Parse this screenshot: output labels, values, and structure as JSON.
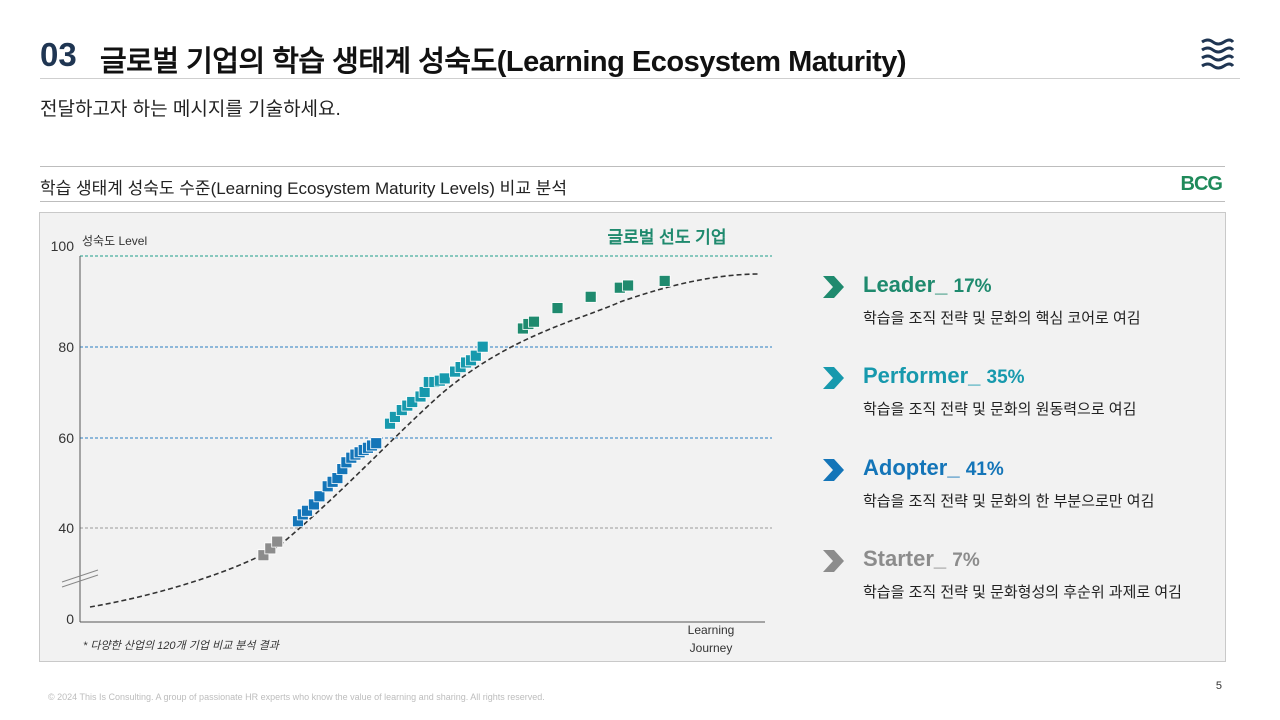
{
  "header": {
    "section_number": "03",
    "title": "글로벌 기업의 학습 생태계 성숙도(Learning Ecosystem Maturity)",
    "message": "전달하고자 하는 메시지를 기술하세요."
  },
  "section": {
    "title": "학습 생태계 성숙도 수준(Learning Ecosystem Maturity Levels) 비교 분석",
    "brand": "BCG"
  },
  "chart_data": {
    "type": "scatter",
    "title": "학습 생태계 성숙도 수준(Learning Ecosystem Maturity Levels) 비교 분석",
    "ylabel": "성숙도 Level",
    "xlabel": "Learning Journey",
    "ytick_labels": [
      "100",
      "80",
      "60",
      "40",
      "0"
    ],
    "ylim": [
      0,
      100
    ],
    "y_axis_break": true,
    "annotation_top": "글로벌 선도 기업",
    "note": "* 다양한 산업의 120개 기업 비교 분석 결과",
    "trend": "dashed S-curve",
    "series": [
      {
        "name": "Starter",
        "color": "#8c8c8c",
        "x": [
          0.265,
          0.275,
          0.285
        ],
        "y": [
          34.0,
          35.5,
          37.0
        ]
      },
      {
        "name": "Adopter",
        "color": "#1475b8",
        "x": [
          0.315,
          0.322,
          0.328,
          0.338,
          0.346,
          0.358,
          0.365,
          0.372,
          0.379,
          0.385,
          0.392,
          0.398,
          0.404,
          0.41,
          0.416,
          0.422,
          0.428
        ],
        "y": [
          41.5,
          43.0,
          43.8,
          45.2,
          47.0,
          49.2,
          50.2,
          51.0,
          53.0,
          54.5,
          55.5,
          56.2,
          56.7,
          57.2,
          57.7,
          58.2,
          58.7
        ]
      },
      {
        "name": "Performer",
        "color": "#1799ad",
        "x": [
          0.448,
          0.455,
          0.465,
          0.473,
          0.48,
          0.492,
          0.498,
          0.504,
          0.512,
          0.52,
          0.527,
          0.542,
          0.55,
          0.558,
          0.565,
          0.572,
          0.582
        ],
        "y": [
          63.0,
          64.5,
          66.0,
          67.0,
          67.8,
          69.0,
          70.0,
          72.2,
          72.2,
          72.5,
          73.0,
          74.5,
          75.5,
          76.5,
          77.0,
          78.0,
          80.0
        ]
      },
      {
        "name": "Leader",
        "color": "#1f8a6e",
        "x": [
          0.64,
          0.648,
          0.656,
          0.69,
          0.738,
          0.78,
          0.792,
          0.845
        ],
        "y": [
          84.0,
          85.0,
          85.5,
          88.5,
          91.0,
          93.0,
          93.5,
          94.5
        ]
      }
    ]
  },
  "legend": [
    {
      "name": "Leader",
      "pct": "17%",
      "desc": "학습을 조직 전략 및 문화의 핵심 코어로 여김",
      "color": "#1f8a6e",
      "chevron": "chevron-right-icon"
    },
    {
      "name": "Performer",
      "pct": "35%",
      "desc": "학습을 조직 전략 및 문화의 원동력으로 여김",
      "color": "#1799ad",
      "chevron": "chevron-right-icon"
    },
    {
      "name": "Adopter",
      "pct": "41%",
      "desc": "학습을 조직 전략 및 문화의 한 부분으로만 여김",
      "color": "#1475b8",
      "chevron": "chevron-right-icon"
    },
    {
      "name": "Starter",
      "pct": "7%",
      "desc": "학습을 조직 전략 및 문화형성의 후순위 과제로 여김",
      "color": "#8c8c8c",
      "chevron": "chevron-right-icon"
    }
  ],
  "footer": {
    "copyright": "© 2024 This Is Consulting. A group of passionate HR experts who know the value of learning and sharing. All rights reserved.",
    "page_number": "5"
  }
}
